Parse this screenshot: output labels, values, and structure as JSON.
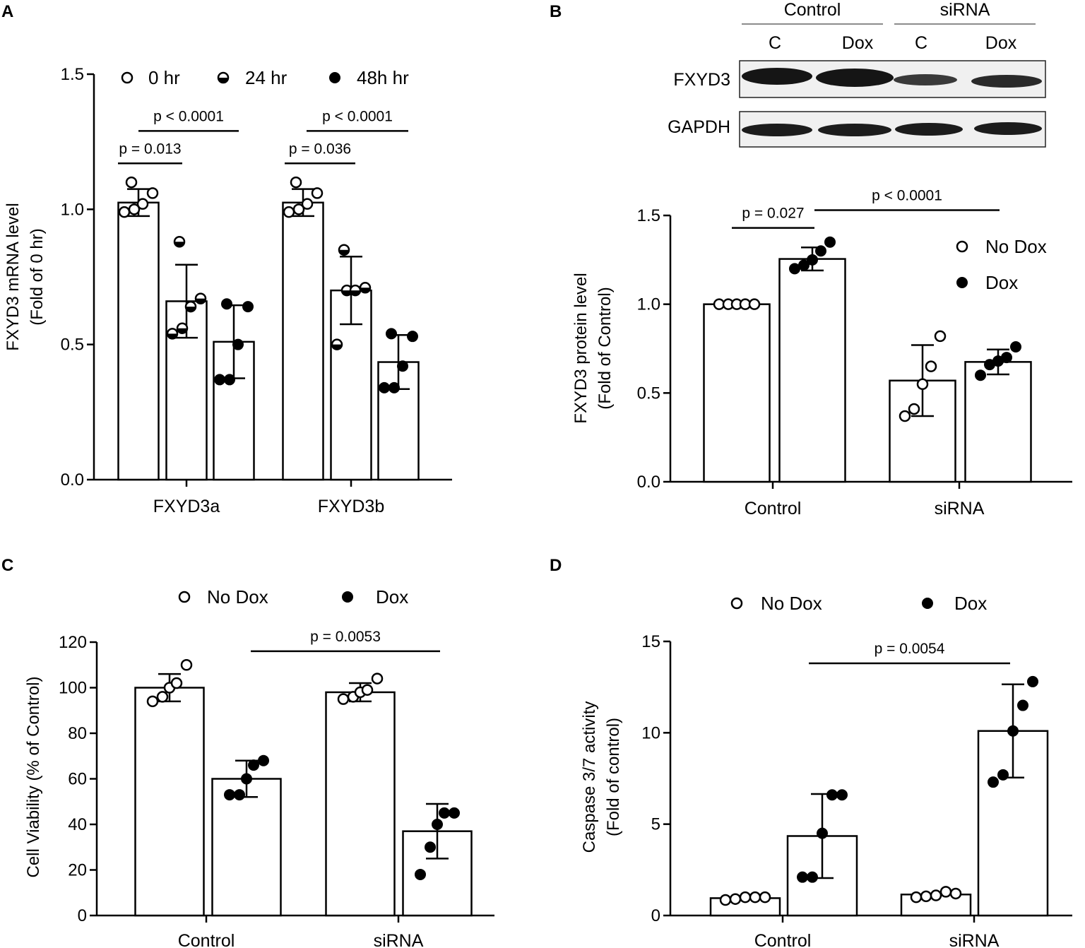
{
  "chart_data": [
    {
      "panel": "A",
      "type": "bar",
      "ylabel": "FXYD3 mRNA level",
      "ylabel2": "(Fold of 0 hr)",
      "ylim": [
        0,
        1.5
      ],
      "yticks": [
        "0.0",
        "0.5",
        "1.0",
        "1.5"
      ],
      "categories": [
        "FXYD3a",
        "FXYD3b"
      ],
      "legend": [
        "0 hr",
        "24 hr",
        "48h hr"
      ],
      "series": [
        {
          "name": "0 hr",
          "marker": "open",
          "values": [
            1.025,
            1.025
          ],
          "sd": [
            0.05,
            0.05
          ],
          "points": [
            [
              0.99,
              1.0,
              1.02,
              1.06,
              1.1
            ],
            [
              0.99,
              1.0,
              1.02,
              1.06,
              1.1
            ]
          ]
        },
        {
          "name": "24 hr",
          "marker": "half",
          "values": [
            0.66,
            0.7
          ],
          "sd": [
            0.135,
            0.125
          ],
          "points": [
            [
              0.54,
              0.56,
              0.64,
              0.67,
              0.88
            ],
            [
              0.5,
              0.7,
              0.7,
              0.71,
              0.85
            ]
          ]
        },
        {
          "name": "48h hr",
          "marker": "filled",
          "values": [
            0.51,
            0.435
          ],
          "sd": [
            0.135,
            0.1
          ],
          "points": [
            [
              0.37,
              0.37,
              0.5,
              0.64,
              0.65
            ],
            [
              0.34,
              0.34,
              0.42,
              0.53,
              0.54
            ]
          ]
        }
      ],
      "comparisons": [
        {
          "label": "p < 0.0001",
          "y": 1.29
        },
        {
          "label": "p = 0.013",
          "y": 1.17
        },
        {
          "label": "p < 0.0001",
          "y": 1.29
        },
        {
          "label": "p = 0.036",
          "y": 1.17
        }
      ]
    },
    {
      "panel": "B",
      "type": "bar",
      "ylabel": "FXYD3 protein level",
      "ylabel2": "(Fold of Control)",
      "ylim": [
        0,
        1.5
      ],
      "yticks": [
        "0.0",
        "0.5",
        "1.0",
        "1.5"
      ],
      "categories": [
        "Control",
        "siRNA"
      ],
      "legend": [
        "No Dox",
        "Dox"
      ],
      "series": [
        {
          "name": "No Dox",
          "marker": "open",
          "values": [
            1.0,
            0.57
          ],
          "sd": [
            0.0,
            0.2
          ],
          "points": [
            [
              1.0,
              1.0,
              1.0,
              1.0,
              1.0
            ],
            [
              0.37,
              0.41,
              0.55,
              0.65,
              0.82
            ]
          ]
        },
        {
          "name": "Dox",
          "marker": "filled",
          "values": [
            1.255,
            0.675
          ],
          "sd": [
            0.065,
            0.07
          ],
          "points": [
            [
              1.2,
              1.22,
              1.25,
              1.3,
              1.35
            ],
            [
              0.6,
              0.66,
              0.68,
              0.7,
              0.76
            ]
          ]
        }
      ],
      "comparisons": [
        {
          "label": "p = 0.027",
          "y": 1.43
        },
        {
          "label": "p < 0.0001",
          "y": 1.53
        }
      ],
      "blot": {
        "groups": [
          "Control",
          "siRNA"
        ],
        "lanes": [
          "C",
          "Dox",
          "C",
          "Dox"
        ],
        "rows": [
          "FXYD3",
          "GAPDH"
        ]
      }
    },
    {
      "panel": "C",
      "type": "bar",
      "ylabel": "Cell Viability (% of Control)",
      "ylim": [
        0,
        120
      ],
      "yticks": [
        "0",
        "20",
        "40",
        "60",
        "80",
        "100",
        "120"
      ],
      "categories": [
        "Control",
        "siRNA"
      ],
      "legend": [
        "No  Dox",
        "Dox"
      ],
      "series": [
        {
          "name": "No  Dox",
          "marker": "open",
          "values": [
            100,
            98
          ],
          "sd": [
            6,
            4
          ],
          "points": [
            [
              94,
              96,
              100,
              102,
              110
            ],
            [
              95,
              96,
              98,
              99,
              104
            ]
          ]
        },
        {
          "name": "Dox",
          "marker": "filled",
          "values": [
            60,
            37
          ],
          "sd": [
            8,
            12
          ],
          "points": [
            [
              53,
              53,
              60,
              66,
              68
            ],
            [
              18,
              30,
              40,
              45,
              45
            ]
          ]
        }
      ],
      "comparisons": [
        {
          "label": "p = 0.0053",
          "y": 116
        }
      ]
    },
    {
      "panel": "D",
      "type": "bar",
      "ylabel": "Caspase 3/7 activity",
      "ylabel2": "(Fold of control)",
      "ylim": [
        0,
        15
      ],
      "yticks": [
        "0",
        "5",
        "10",
        "15"
      ],
      "categories": [
        "Control",
        "siRNA"
      ],
      "legend": [
        "No Dox",
        "Dox"
      ],
      "series": [
        {
          "name": "No Dox",
          "marker": "open",
          "values": [
            0.95,
            1.15
          ],
          "sd": [
            0.05,
            0.05
          ],
          "points": [
            [
              0.85,
              0.9,
              1.0,
              1.0,
              1.0
            ],
            [
              1.0,
              1.05,
              1.1,
              1.3,
              1.2
            ]
          ]
        },
        {
          "name": "Dox",
          "marker": "filled",
          "values": [
            4.35,
            10.1
          ],
          "sd": [
            2.3,
            2.55
          ],
          "points": [
            [
              2.1,
              2.1,
              4.5,
              6.6,
              6.6
            ],
            [
              7.3,
              7.7,
              10.1,
              11.5,
              12.8
            ]
          ]
        }
      ],
      "comparisons": [
        {
          "label": "p = 0.0054",
          "y": 13.8
        }
      ]
    }
  ]
}
